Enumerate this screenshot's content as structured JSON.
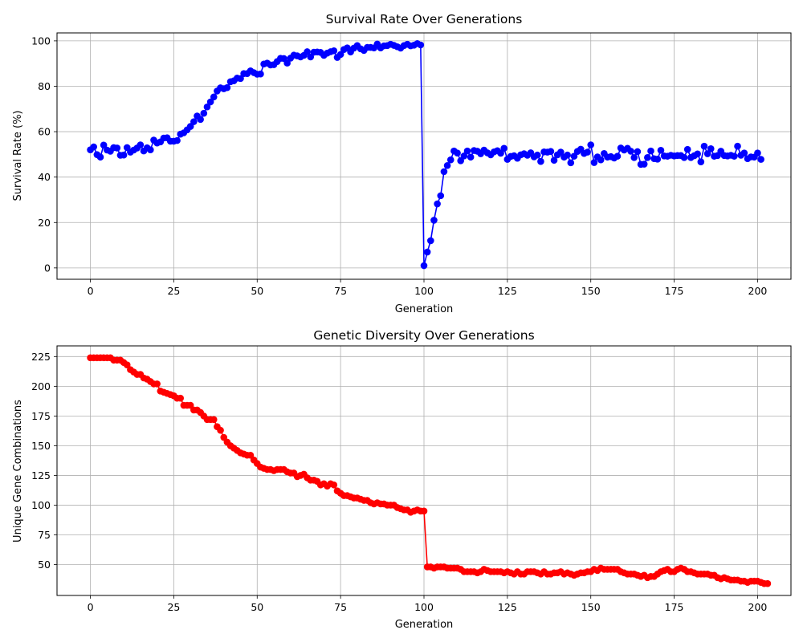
{
  "chart_data": [
    {
      "type": "line",
      "title": "Survival Rate Over Generations",
      "xlabel": "Generation",
      "ylabel": "Survival Rate (%)",
      "xlim": [
        -10,
        210
      ],
      "ylim": [
        -5,
        103.5
      ],
      "xticks": [
        "0",
        "25",
        "50",
        "75",
        "100",
        "125",
        "150",
        "175",
        "200"
      ],
      "yticks": [
        "0",
        "20",
        "40",
        "60",
        "80",
        "100"
      ],
      "grid": true,
      "color": "#0000ff",
      "x_start": 0,
      "y": [
        52.0,
        53.3,
        49.9,
        48.8,
        54.1,
        51.9,
        51.4,
        53.0,
        52.8,
        49.6,
        49.7,
        53.0,
        51.0,
        51.9,
        52.8,
        54.2,
        51.5,
        52.9,
        52.0,
        56.3,
        55.0,
        55.5,
        57.2,
        57.3,
        55.8,
        55.8,
        56.1,
        58.9,
        59.5,
        60.8,
        62.3,
        64.4,
        66.9,
        65.4,
        68.1,
        70.9,
        73.1,
        75.3,
        77.9,
        79.3,
        78.9,
        79.4,
        82.0,
        82.4,
        83.6,
        83.4,
        85.6,
        85.6,
        86.8,
        86.0,
        85.3,
        85.4,
        89.8,
        90.2,
        89.4,
        89.5,
        90.9,
        92.3,
        92.2,
        90.2,
        92.4,
        93.7,
        93.4,
        92.9,
        93.6,
        95.2,
        92.9,
        95.0,
        95.1,
        94.9,
        93.6,
        94.6,
        95.2,
        95.6,
        92.7,
        94.0,
        96.2,
        96.9,
        95.1,
        96.8,
        97.9,
        96.5,
        95.8,
        97.1,
        97.1,
        96.9,
        98.6,
        96.9,
        97.8,
        97.9,
        98.5,
        98.0,
        97.4,
        96.8,
        97.9,
        98.5,
        97.8,
        98.1,
        98.8,
        98.2,
        1.0,
        7.0,
        12.0,
        21.0,
        28.2,
        31.8,
        42.4,
        45.1,
        47.6,
        51.5,
        50.6,
        47.2,
        49.3,
        51.5,
        48.8,
        51.7,
        51.4,
        50.3,
        51.9,
        50.7,
        49.8,
        51.1,
        51.6,
        50.5,
        52.7,
        47.8,
        49.1,
        49.4,
        48.3,
        49.8,
        50.3,
        49.6,
        50.7,
        48.9,
        49.7,
        46.9,
        51.1,
        51.0,
        51.3,
        47.4,
        49.8,
        51.0,
        48.8,
        49.7,
        46.3,
        49.2,
        51.3,
        52.3,
        50.4,
        51.0,
        54.2,
        46.4,
        48.9,
        47.6,
        50.4,
        48.8,
        49.0,
        48.4,
        49.2,
        52.8,
        51.9,
        52.7,
        51.4,
        48.6,
        51.2,
        45.6,
        45.7,
        48.6,
        51.5,
        48.1,
        47.9,
        51.8,
        49.3,
        49.2,
        49.6,
        49.3,
        49.5,
        49.5,
        48.6,
        52.2,
        48.6,
        49.4,
        50.2,
        46.7,
        53.6,
        50.3,
        52.5,
        49.2,
        49.5,
        51.4,
        49.5,
        49.3,
        49.6,
        49.2,
        53.6,
        49.6,
        50.6,
        48.1,
        48.9,
        48.8,
        50.6,
        47.8
      ]
    },
    {
      "type": "line",
      "title": "Genetic Diversity Over Generations",
      "xlabel": "Generation",
      "ylabel": "Unique Gene Combinations",
      "xlim": [
        -10,
        210
      ],
      "ylim": [
        24,
        234
      ],
      "xticks": [
        "0",
        "25",
        "50",
        "75",
        "100",
        "125",
        "150",
        "175",
        "200"
      ],
      "yticks": [
        "50",
        "75",
        "100",
        "125",
        "150",
        "175",
        "200",
        "225"
      ],
      "grid": true,
      "color": "#ff0000",
      "x_start": 0,
      "y": [
        224,
        224,
        224,
        224,
        224,
        224,
        224,
        222,
        222,
        222,
        220,
        218,
        214,
        212,
        210,
        210,
        207,
        206,
        204,
        202,
        202,
        196,
        195,
        194,
        193,
        192,
        190,
        190,
        184,
        184,
        184,
        180,
        180,
        178,
        175,
        172,
        172,
        172,
        166,
        163,
        157,
        153,
        150,
        148,
        146,
        144,
        143,
        142,
        142,
        138,
        135,
        132,
        131,
        130,
        130,
        129,
        130,
        130,
        130,
        128,
        127,
        127,
        124,
        125,
        126,
        123,
        121,
        121,
        120,
        117,
        118,
        116,
        118,
        117,
        112,
        110,
        108,
        108,
        107,
        106,
        106,
        105,
        104,
        104,
        102,
        101,
        102,
        101,
        101,
        100,
        100,
        100,
        98,
        97,
        96,
        96,
        94,
        95,
        96,
        95,
        95,
        48,
        48,
        47,
        48,
        48,
        48,
        47,
        47,
        47,
        47,
        46,
        44,
        44,
        44,
        44,
        43,
        44,
        46,
        45,
        44,
        44,
        44,
        44,
        43,
        44,
        43,
        42,
        44,
        42,
        42,
        44,
        44,
        44,
        43,
        42,
        44,
        42,
        42,
        43,
        43,
        44,
        42,
        43,
        42,
        41,
        42,
        43,
        43,
        44,
        44,
        46,
        45,
        47,
        46,
        46,
        46,
        46,
        46,
        44,
        43,
        42,
        42,
        42,
        41,
        40,
        41,
        39,
        40,
        40,
        42,
        44,
        45,
        46,
        44,
        44,
        46,
        47,
        46,
        44,
        44,
        43,
        42,
        42,
        42,
        42,
        41,
        41,
        39,
        38,
        39,
        38,
        37,
        37,
        37,
        36,
        36,
        35,
        36,
        36,
        36,
        35,
        34,
        34
      ]
    }
  ]
}
